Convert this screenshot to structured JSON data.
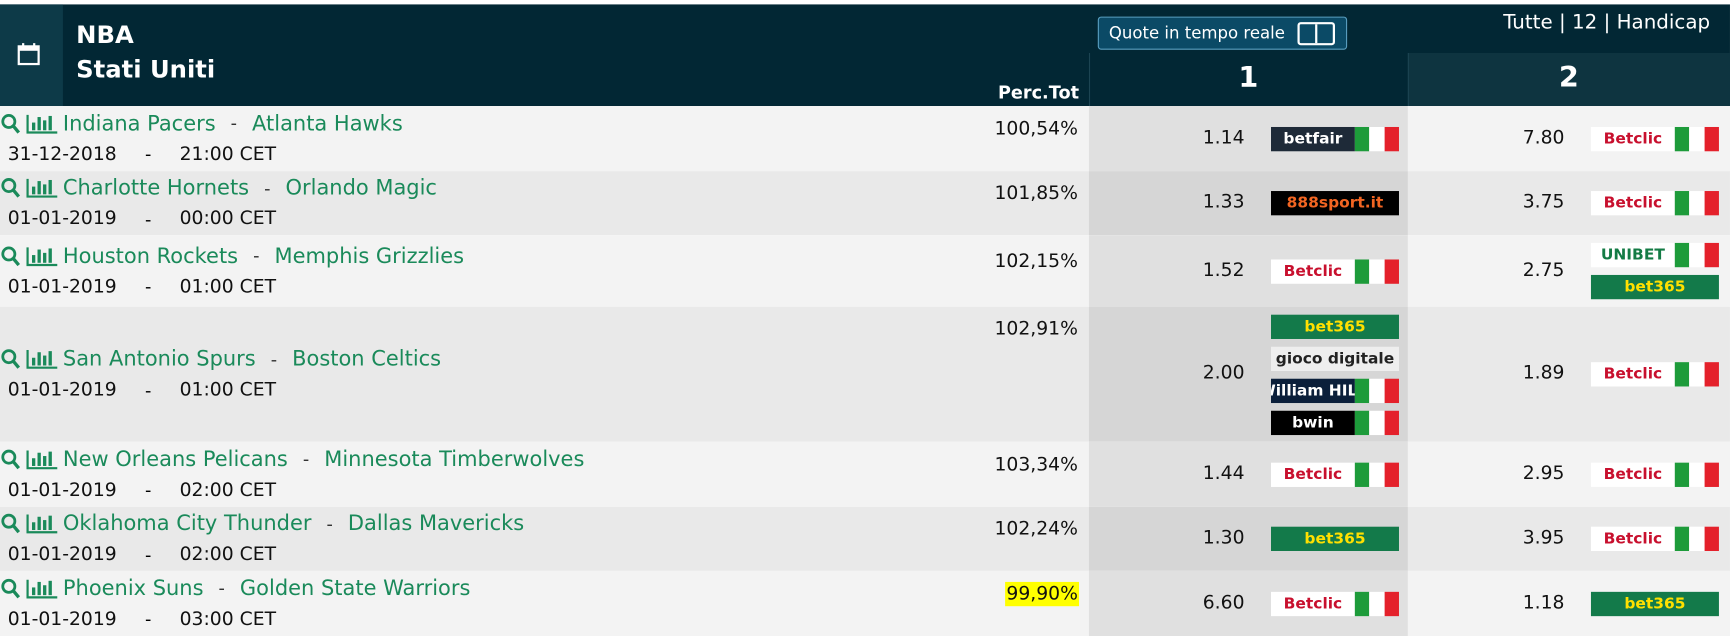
{
  "header": {
    "league": "NBA",
    "country": "Stati Uniti",
    "perc_label": "Perc.Tot",
    "toggle_label": "Quote in tempo reale",
    "filter": "Tutte | 12 | Handicap",
    "col1": "1",
    "col2": "2"
  },
  "rows": [
    {
      "home": "Indiana Pacers",
      "away": "Atlanta Hawks",
      "date": "31-12-2018",
      "time": "21:00 CET",
      "perc": "100,54%",
      "odds1": "1.14",
      "odds2": "7.80",
      "books1": [
        {
          "name": "betfair",
          "bg": "#1e2a38",
          "color": "#ffffff",
          "flag": true
        }
      ],
      "books2": [
        {
          "name": "Betclic",
          "bg": "#ffffff",
          "color": "#c8102e",
          "flag": true
        }
      ]
    },
    {
      "home": "Charlotte Hornets",
      "away": "Orlando Magic",
      "date": "01-01-2019",
      "time": "00:00 CET",
      "perc": "101,85%",
      "odds1": "1.33",
      "odds2": "3.75",
      "books1": [
        {
          "name": "888sport.it",
          "bg": "#000000",
          "color": "#f26522"
        }
      ],
      "books2": [
        {
          "name": "Betclic",
          "bg": "#ffffff",
          "color": "#c8102e",
          "flag": true
        }
      ]
    },
    {
      "home": "Houston Rockets",
      "away": "Memphis Grizzlies",
      "date": "01-01-2019",
      "time": "01:00 CET",
      "perc": "102,15%",
      "odds1": "1.52",
      "odds2": "2.75",
      "books1": [
        {
          "name": "Betclic",
          "bg": "#ffffff",
          "color": "#c8102e",
          "flag": true
        }
      ],
      "books2": [
        {
          "name": "UNIBET",
          "bg": "#ffffff",
          "color": "#147b45",
          "flag": true
        },
        {
          "name": "bet365",
          "bg": "#137a4a",
          "color": "#ffe000"
        }
      ]
    },
    {
      "home": "San Antonio Spurs",
      "away": "Boston Celtics",
      "date": "01-01-2019",
      "time": "01:00 CET",
      "perc": "102,91%",
      "odds1": "2.00",
      "odds2": "1.89",
      "books1": [
        {
          "name": "bet365",
          "bg": "#137a4a",
          "color": "#ffe000"
        },
        {
          "name": "gioco digitale",
          "bg": "#eeeeee",
          "color": "#222222"
        },
        {
          "name": "William HILL",
          "bg": "#0b1f3a",
          "color": "#ffffff",
          "flag": true
        },
        {
          "name": "bwin",
          "bg": "#000000",
          "color": "#ffffff",
          "flag": true
        }
      ],
      "books2": [
        {
          "name": "Betclic",
          "bg": "#ffffff",
          "color": "#c8102e",
          "flag": true
        }
      ]
    },
    {
      "home": "New Orleans Pelicans",
      "away": "Minnesota Timberwolves",
      "date": "01-01-2019",
      "time": "02:00 CET",
      "perc": "103,34%",
      "odds1": "1.44",
      "odds2": "2.95",
      "books1": [
        {
          "name": "Betclic",
          "bg": "#ffffff",
          "color": "#c8102e",
          "flag": true
        }
      ],
      "books2": [
        {
          "name": "Betclic",
          "bg": "#ffffff",
          "color": "#c8102e",
          "flag": true
        }
      ]
    },
    {
      "home": "Oklahoma City Thunder",
      "away": "Dallas Mavericks",
      "date": "01-01-2019",
      "time": "02:00 CET",
      "perc": "102,24%",
      "odds1": "1.30",
      "odds2": "3.95",
      "books1": [
        {
          "name": "bet365",
          "bg": "#137a4a",
          "color": "#ffe000"
        }
      ],
      "books2": [
        {
          "name": "Betclic",
          "bg": "#ffffff",
          "color": "#c8102e",
          "flag": true
        }
      ]
    },
    {
      "home": "Phoenix Suns",
      "away": "Golden State Warriors",
      "date": "01-01-2019",
      "time": "03:00 CET",
      "perc": "99,90%",
      "highlight": true,
      "odds1": "6.60",
      "odds2": "1.18",
      "books1": [
        {
          "name": "Betclic",
          "bg": "#ffffff",
          "color": "#c8102e",
          "flag": true
        }
      ],
      "books2": [
        {
          "name": "bet365",
          "bg": "#137a4a",
          "color": "#ffe000"
        }
      ]
    }
  ]
}
